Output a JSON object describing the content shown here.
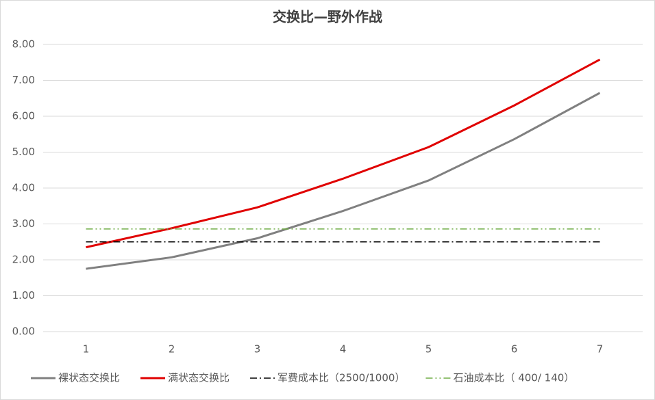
{
  "chart_data": {
    "type": "line",
    "title": "交换比—野外作战",
    "categories": [
      "1",
      "2",
      "3",
      "4",
      "5",
      "6",
      "7"
    ],
    "series": [
      {
        "name": "裸状态交换比",
        "color": "#808080",
        "style": "solid",
        "values": [
          1.75,
          2.07,
          2.6,
          3.36,
          4.21,
          5.36,
          6.65
        ]
      },
      {
        "name": "满状态交换比",
        "color": "#e00000",
        "style": "solid",
        "values": [
          2.35,
          2.88,
          3.46,
          4.26,
          5.14,
          6.3,
          7.58
        ]
      },
      {
        "name": "军费成本比（2500/1000）",
        "color": "#000000",
        "style": "dash-dot",
        "values": [
          2.5,
          2.5,
          2.5,
          2.5,
          2.5,
          2.5,
          2.5
        ]
      },
      {
        "name": "石油成本比（ 400/ 140）",
        "color": "#70ad47",
        "style": "dash-dot-dot",
        "values": [
          2.86,
          2.86,
          2.86,
          2.86,
          2.86,
          2.86,
          2.86
        ]
      }
    ],
    "ylim": [
      0,
      8
    ],
    "yticks": [
      {
        "value": 0,
        "label": "0.00"
      },
      {
        "value": 1,
        "label": "1.00"
      },
      {
        "value": 2,
        "label": "2.00"
      },
      {
        "value": 3,
        "label": "3.00"
      },
      {
        "value": 4,
        "label": "4.00"
      },
      {
        "value": 5,
        "label": "5.00"
      },
      {
        "value": 6,
        "label": "6.00"
      },
      {
        "value": 7,
        "label": "7.00"
      },
      {
        "value": 8,
        "label": "8.00"
      }
    ],
    "grid": true,
    "legend": "bottom"
  }
}
